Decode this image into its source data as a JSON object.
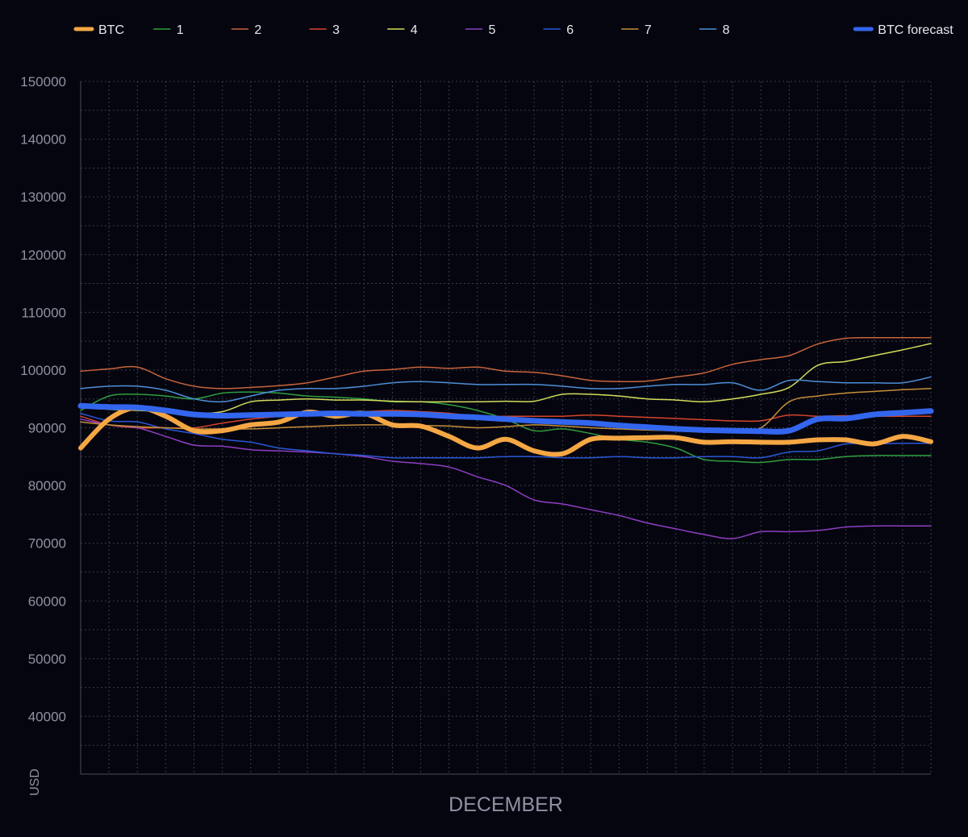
{
  "chart_data": {
    "type": "line",
    "xlabel": "DECEMBER",
    "ylabel": "USD",
    "x_categories": 31,
    "ylim": [
      30000,
      150000
    ],
    "yticks": [
      40000,
      50000,
      60000,
      70000,
      80000,
      90000,
      100000,
      110000,
      120000,
      130000,
      140000,
      150000
    ],
    "grid": true,
    "legend_position": "top",
    "x": [
      1,
      2,
      3,
      4,
      5,
      6,
      7,
      8,
      9,
      10,
      11,
      12,
      13,
      14,
      15,
      16,
      17,
      18,
      19,
      20,
      21,
      22,
      23,
      24,
      25,
      26,
      27,
      28,
      29,
      30,
      31
    ],
    "series": [
      {
        "name": "1",
        "color": "#2e9e3e",
        "width": 1.5,
        "values": [
          93000,
          95500,
          95800,
          95500,
          95000,
          96000,
          96200,
          96000,
          95500,
          95300,
          95000,
          94500,
          94500,
          94000,
          93000,
          91500,
          89500,
          89800,
          89000,
          88000,
          87500,
          86500,
          84500,
          84200,
          84000,
          84500,
          84500,
          85000,
          85200,
          85200,
          85200
        ]
      },
      {
        "name": "2",
        "color": "#c8643a",
        "width": 1.5,
        "values": [
          99800,
          100200,
          100500,
          98500,
          97200,
          96800,
          97000,
          97300,
          97800,
          98800,
          99800,
          100100,
          100500,
          100300,
          100500,
          99800,
          99600,
          99000,
          98200,
          98000,
          98100,
          98800,
          99500,
          101000,
          101800,
          102500,
          104500,
          105500,
          105600,
          105600,
          105600
        ]
      },
      {
        "name": "3",
        "color": "#d6452c",
        "width": 1.5,
        "values": [
          92000,
          90500,
          90000,
          90000,
          90000,
          90800,
          91500,
          92000,
          92500,
          92800,
          92800,
          93000,
          92800,
          92500,
          92000,
          92000,
          92000,
          92000,
          92200,
          92000,
          91800,
          91600,
          91400,
          91200,
          91200,
          92200,
          92000,
          92100,
          92000,
          92000,
          92000
        ]
      },
      {
        "name": "4",
        "color": "#d3dc5a",
        "width": 1.5,
        "values": [
          93500,
          93200,
          93000,
          92800,
          92500,
          92800,
          94500,
          94800,
          95000,
          94800,
          94800,
          94600,
          94500,
          94500,
          94500,
          94600,
          94600,
          95800,
          95800,
          95500,
          95000,
          94800,
          94500,
          95000,
          95800,
          97000,
          100800,
          101500,
          102500,
          103500,
          104600
        ]
      },
      {
        "name": "5",
        "color": "#8e3ec4",
        "width": 1.5,
        "values": [
          91500,
          90500,
          90000,
          88500,
          87000,
          86800,
          86200,
          86000,
          85800,
          85500,
          85000,
          84200,
          83800,
          83200,
          81500,
          80000,
          77500,
          76800,
          75800,
          74800,
          73500,
          72500,
          71500,
          70800,
          72000,
          72000,
          72200,
          72800,
          73000,
          73000,
          73000
        ]
      },
      {
        "name": "6",
        "color": "#2a57d8",
        "width": 1.5,
        "values": [
          92500,
          91200,
          91000,
          89800,
          89000,
          88000,
          87500,
          86500,
          86000,
          85500,
          85200,
          84800,
          84800,
          84800,
          84800,
          85000,
          85000,
          84800,
          84800,
          85000,
          84800,
          84800,
          85000,
          85000,
          84800,
          85800,
          86000,
          87200,
          87200,
          87300,
          87300
        ]
      },
      {
        "name": "7",
        "color": "#c58f3a",
        "width": 1.5,
        "values": [
          91000,
          90500,
          90200,
          90000,
          89800,
          89800,
          89800,
          90000,
          90200,
          90400,
          90500,
          90500,
          90400,
          90300,
          90000,
          90200,
          90500,
          90300,
          90000,
          89800,
          89600,
          89500,
          89400,
          89500,
          90000,
          94500,
          95500,
          96000,
          96300,
          96600,
          96800
        ]
      },
      {
        "name": "8",
        "color": "#4d8fd8",
        "width": 1.5,
        "values": [
          96800,
          97200,
          97200,
          96500,
          95000,
          94500,
          95500,
          96500,
          96800,
          96800,
          97200,
          97800,
          98000,
          97800,
          97500,
          97500,
          97500,
          97200,
          96800,
          96800,
          97200,
          97500,
          97500,
          97800,
          96500,
          98200,
          98000,
          97800,
          97800,
          97800,
          98800
        ]
      },
      {
        "name": "BTC",
        "color": "#f5a744",
        "width": 6,
        "values": [
          86500,
          91500,
          93500,
          92000,
          89500,
          89500,
          90500,
          91000,
          92700,
          92000,
          92500,
          90500,
          90300,
          88500,
          86500,
          88000,
          86000,
          85500,
          88000,
          88200,
          88300,
          88300,
          87500,
          87600,
          87500,
          87500,
          87900,
          87900,
          87200,
          88500,
          87600
        ]
      },
      {
        "name": "BTC forecast",
        "color": "#3366ee",
        "width": 7,
        "values": [
          93800,
          93600,
          93500,
          93000,
          92300,
          92100,
          92200,
          92300,
          92400,
          92500,
          92400,
          92400,
          92300,
          92000,
          91800,
          91500,
          91200,
          91000,
          90800,
          90400,
          90100,
          89800,
          89600,
          89500,
          89400,
          89500,
          91500,
          91600,
          92300,
          92600,
          92900
        ]
      }
    ],
    "legend_order": [
      "BTC",
      "1",
      "2",
      "3",
      "4",
      "5",
      "6",
      "7",
      "8",
      "BTC forecast"
    ]
  }
}
